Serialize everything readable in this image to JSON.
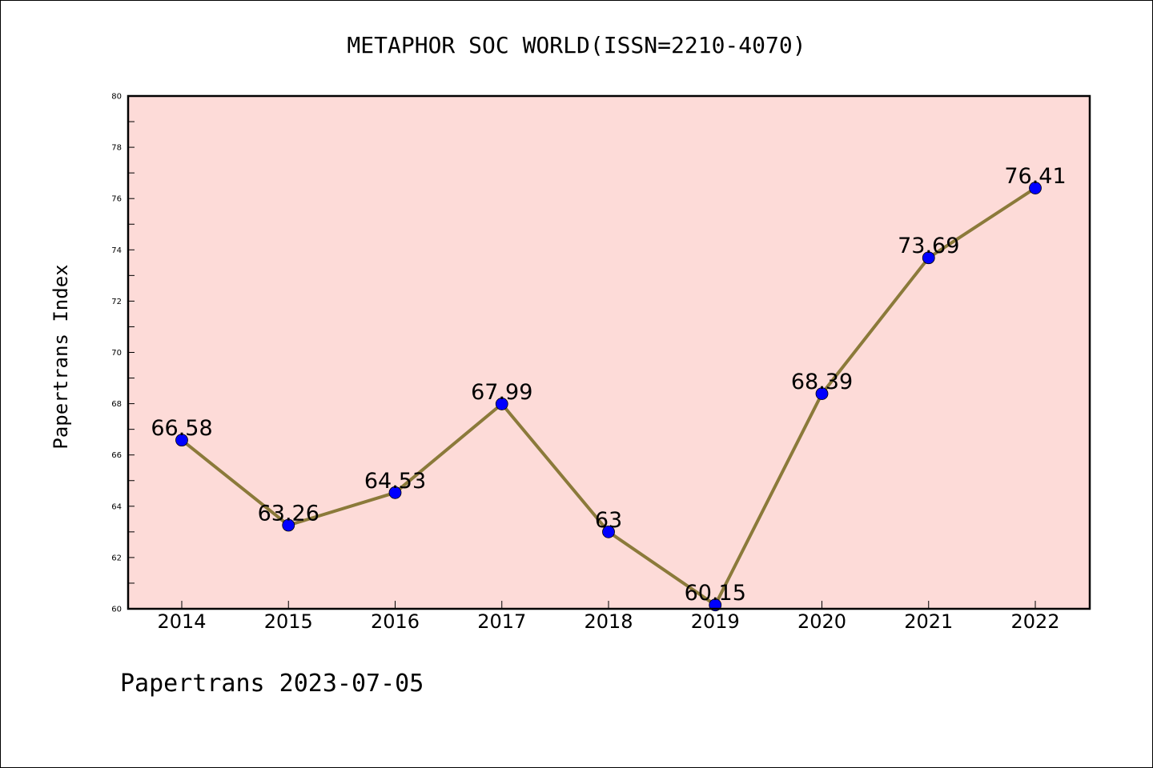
{
  "chart_data": {
    "type": "line",
    "title": "METAPHOR SOC WORLD(ISSN=2210-4070)",
    "xlabel": "",
    "ylabel": "Papertrans Index",
    "categories": [
      "2014",
      "2015",
      "2016",
      "2017",
      "2018",
      "2019",
      "2020",
      "2021",
      "2022"
    ],
    "series": [
      {
        "values": [
          66.58,
          63.26,
          64.53,
          67.99,
          63,
          60.15,
          68.39,
          73.69,
          76.41
        ],
        "labels": [
          "66.58",
          "63.26",
          "64.53",
          "67.99",
          "63",
          "60.15",
          "68.39",
          "73.69",
          "76.41"
        ]
      }
    ],
    "ylim": [
      60,
      80
    ],
    "yticks": [
      "60",
      "62",
      "64",
      "66",
      "68",
      "70",
      "72",
      "74",
      "76",
      "78",
      "80"
    ],
    "grid": false,
    "legend": "none",
    "colors": {
      "plot_background": "#fddbd8",
      "line": "#8b7a3a",
      "marker": "#0000ff",
      "axes": "#000000"
    }
  },
  "footer": {
    "text": "Papertrans 2023-07-05"
  }
}
